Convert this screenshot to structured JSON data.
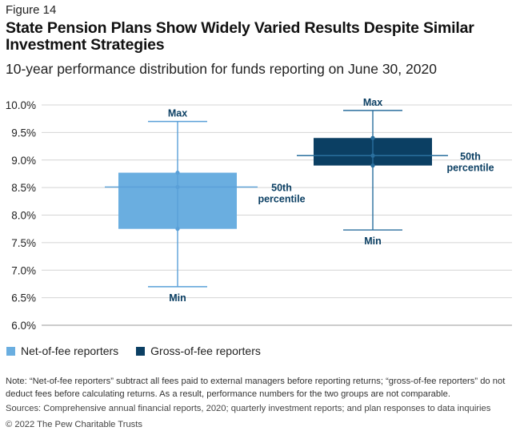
{
  "figure_label": "Figure 14",
  "title": "State Pension Plans Show Widely Varied Results Despite Similar Investment Strategies",
  "subtitle": "10-year performance distribution for funds reporting on June 30, 2020",
  "chart_data": {
    "type": "boxplot",
    "ylim": [
      6.0,
      10.0
    ],
    "y_ticks": [
      "10.0%",
      "9.5%",
      "9.0%",
      "8.5%",
      "8.0%",
      "7.5%",
      "7.0%",
      "6.5%",
      "6.0%"
    ],
    "grid": true,
    "legend_placement": "bottom-left",
    "series": [
      {
        "name": "Net-of-fee reporters",
        "color": "#6aaee0",
        "min": 6.7,
        "q1": 7.75,
        "median": 8.51,
        "q3": 8.77,
        "max": 9.7,
        "labels": {
          "max": "Max",
          "median": "50th percentile",
          "min": "Min"
        }
      },
      {
        "name": "Gross-of-fee reporters",
        "color": "#0b3f63",
        "min": 7.73,
        "q1": 8.9,
        "median": 9.08,
        "q3": 9.4,
        "max": 9.9,
        "labels": {
          "max": "Max",
          "median": "50th percentile",
          "min": "Min"
        }
      }
    ]
  },
  "note": "Note: “Net-of-fee reporters” subtract all fees paid to external managers before reporting returns; “gross-of-fee reporters” do not deduct fees before calculating returns. As a result, performance numbers for the two groups are not comparable.",
  "sources": "Sources: Comprehensive annual financial reports, 2020; quarterly investment reports; and plan responses to data inquiries",
  "copyright": "© 2022 The Pew Charitable Trusts"
}
